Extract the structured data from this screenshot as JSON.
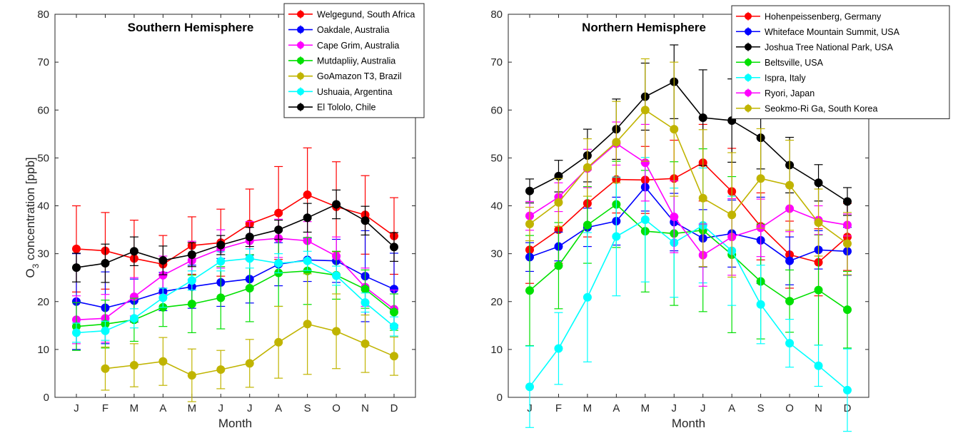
{
  "figure": {
    "ylabel_main": "O",
    "ylabel_sub": "3",
    "ylabel_rest": " concentration [ppb]"
  },
  "chart_data": [
    {
      "type": "line",
      "title": "Southern Hemisphere",
      "xlabel": "Month",
      "ylabel": "O3 concentration [ppb]",
      "categories": [
        "J",
        "F",
        "M",
        "A",
        "M",
        "J",
        "J",
        "A",
        "S",
        "O",
        "N",
        "D"
      ],
      "ylim": [
        0,
        80
      ],
      "yticks": [
        0,
        10,
        20,
        30,
        40,
        50,
        60,
        70,
        80
      ],
      "grid": false,
      "legend": "top-right",
      "series": [
        {
          "name": "Welgegund, South Africa",
          "color": "#ff0000",
          "values": [
            31.0,
            30.6,
            29.0,
            27.8,
            31.7,
            32.3,
            36.2,
            38.5,
            42.3,
            39.8,
            38.1,
            33.7
          ],
          "err": [
            9.0,
            8.0,
            8.0,
            6.0,
            6.0,
            7.0,
            7.3,
            9.7,
            9.8,
            9.4,
            8.2,
            8.0
          ]
        },
        {
          "name": "Oakdale, Australia",
          "color": "#0000ff",
          "values": [
            20.0,
            18.7,
            20.2,
            22.1,
            23.1,
            24.0,
            24.7,
            27.8,
            28.7,
            28.5,
            25.3,
            22.6
          ],
          "err": [
            10.0,
            7.5,
            4.5,
            4.0,
            4.5,
            5.0,
            5.0,
            4.5,
            4.5,
            4.5,
            9.5,
            7.5
          ]
        },
        {
          "name": "Cape Grim, Australia",
          "color": "#ff00ff",
          "values": [
            16.2,
            16.5,
            21.0,
            25.5,
            28.6,
            31.0,
            32.7,
            33.2,
            32.7,
            29.5,
            23.0,
            18.4
          ],
          "err": [
            5.0,
            5.0,
            4.0,
            4.0,
            4.0,
            4.0,
            4.0,
            4.0,
            4.0,
            4.0,
            4.0,
            4.0
          ]
        },
        {
          "name": "Mutdapliiy, Australia",
          "color": "#00e000",
          "values": [
            14.8,
            15.3,
            16.2,
            18.8,
            19.5,
            20.8,
            22.8,
            26.0,
            26.4,
            25.5,
            22.6,
            17.8
          ],
          "err": [
            5.0,
            5.0,
            4.5,
            4.0,
            6.0,
            6.5,
            7.0,
            7.0,
            7.0,
            5.0,
            4.0,
            3.8
          ]
        },
        {
          "name": "GoAmazon T3, Brazil",
          "color": "#c0b400",
          "values": [
            null,
            6.0,
            6.7,
            7.5,
            4.6,
            5.8,
            7.1,
            11.5,
            15.3,
            13.8,
            11.2,
            8.6
          ],
          "err": [
            null,
            4.5,
            4.5,
            5.0,
            5.5,
            4.0,
            5.0,
            7.5,
            10.5,
            7.8,
            6.0,
            4.0
          ]
        },
        {
          "name": "Ushuaia, Argentina",
          "color": "#00ffff",
          "values": [
            13.5,
            13.9,
            16.5,
            20.8,
            24.4,
            28.4,
            29.0,
            28.0,
            28.5,
            25.4,
            19.8,
            14.8
          ],
          "err": [
            2.0,
            2.0,
            2.0,
            2.0,
            2.0,
            2.0,
            2.0,
            2.0,
            2.0,
            2.0,
            2.0,
            2.0
          ]
        },
        {
          "name": "El Tololo, Chile",
          "color": "#000000",
          "values": [
            27.1,
            28.0,
            30.5,
            28.6,
            29.8,
            31.8,
            33.5,
            35.0,
            37.5,
            40.3,
            36.9,
            31.4
          ],
          "err": [
            3.0,
            4.0,
            3.0,
            3.0,
            2.5,
            2.0,
            2.0,
            2.0,
            3.0,
            3.0,
            3.0,
            3.0
          ]
        }
      ]
    },
    {
      "type": "line",
      "title": "Northern Hemisphere",
      "xlabel": "Month",
      "ylabel": "",
      "categories": [
        "J",
        "F",
        "M",
        "A",
        "M",
        "J",
        "J",
        "A",
        "S",
        "O",
        "N",
        "D"
      ],
      "ylim": [
        0,
        80
      ],
      "yticks": [
        0,
        10,
        20,
        30,
        40,
        50,
        60,
        70,
        80
      ],
      "grid": false,
      "legend": "top-right",
      "series": [
        {
          "name": "Hohenpeissenberg, Germany",
          "color": "#ff0000",
          "values": [
            30.8,
            35.0,
            40.5,
            45.5,
            45.4,
            45.7,
            49.0,
            43.0,
            35.7,
            29.8,
            28.2,
            33.5
          ],
          "err": [
            7.0,
            7.0,
            7.0,
            7.0,
            7.0,
            8.0,
            8.0,
            9.0,
            7.0,
            7.0,
            7.0,
            7.0
          ]
        },
        {
          "name": "Whiteface Mountain Summit, USA",
          "color": "#0000ff",
          "values": [
            29.3,
            31.5,
            35.5,
            36.8,
            43.9,
            36.6,
            33.2,
            34.2,
            32.8,
            28.5,
            30.8,
            30.5
          ],
          "err": [
            3.0,
            3.0,
            4.0,
            5.0,
            5.0,
            6.0,
            6.0,
            7.0,
            9.0,
            5.0,
            4.0,
            5.0
          ]
        },
        {
          "name": "Joshua Tree National Park, USA",
          "color": "#000000",
          "values": [
            43.1,
            46.2,
            50.5,
            56.0,
            62.8,
            65.9,
            58.4,
            57.8,
            54.2,
            48.5,
            44.8,
            40.9
          ],
          "err": [
            2.5,
            3.3,
            5.5,
            6.3,
            7.0,
            7.7,
            10.0,
            8.7,
            6.5,
            5.8,
            3.8,
            2.9
          ]
        },
        {
          "name": "Beltsville, USA",
          "color": "#00e000",
          "values": [
            22.3,
            27.5,
            36.0,
            40.3,
            34.7,
            34.2,
            34.9,
            29.8,
            24.2,
            20.1,
            22.4,
            18.3
          ],
          "err": [
            11.5,
            9.0,
            8.0,
            9.0,
            12.7,
            15.0,
            17.0,
            16.3,
            12.0,
            6.5,
            11.5,
            8.0
          ]
        },
        {
          "name": "Ispra, Italy",
          "color": "#00ffff",
          "values": [
            2.2,
            10.2,
            20.9,
            33.6,
            37.1,
            32.3,
            35.9,
            30.6,
            19.4,
            11.3,
            6.6,
            1.5
          ],
          "err": [
            8.5,
            7.5,
            13.5,
            12.4,
            13.0,
            11.4,
            12.0,
            11.4,
            8.2,
            5.0,
            4.3,
            8.6
          ]
        },
        {
          "name": "Ryori, Japan",
          "color": "#ff00ff",
          "values": [
            37.9,
            41.8,
            47.8,
            53.0,
            49.0,
            37.7,
            29.7,
            33.5,
            35.4,
            39.4,
            37.0,
            36.0
          ],
          "err": [
            3.0,
            3.0,
            4.0,
            4.5,
            8.0,
            7.5,
            6.5,
            8.0,
            6.0,
            4.8,
            3.0,
            2.3
          ]
        },
        {
          "name": "Seokmo-Ri Ga, South Korea",
          "color": "#c0b400",
          "values": [
            36.2,
            40.7,
            48.0,
            53.3,
            60.0,
            56.0,
            41.6,
            38.1,
            45.7,
            44.3,
            36.5,
            32.1
          ],
          "err": [
            3.5,
            5.0,
            6.0,
            8.5,
            10.7,
            14.0,
            14.3,
            13.0,
            10.4,
            9.4,
            7.0,
            6.5
          ]
        }
      ]
    }
  ]
}
